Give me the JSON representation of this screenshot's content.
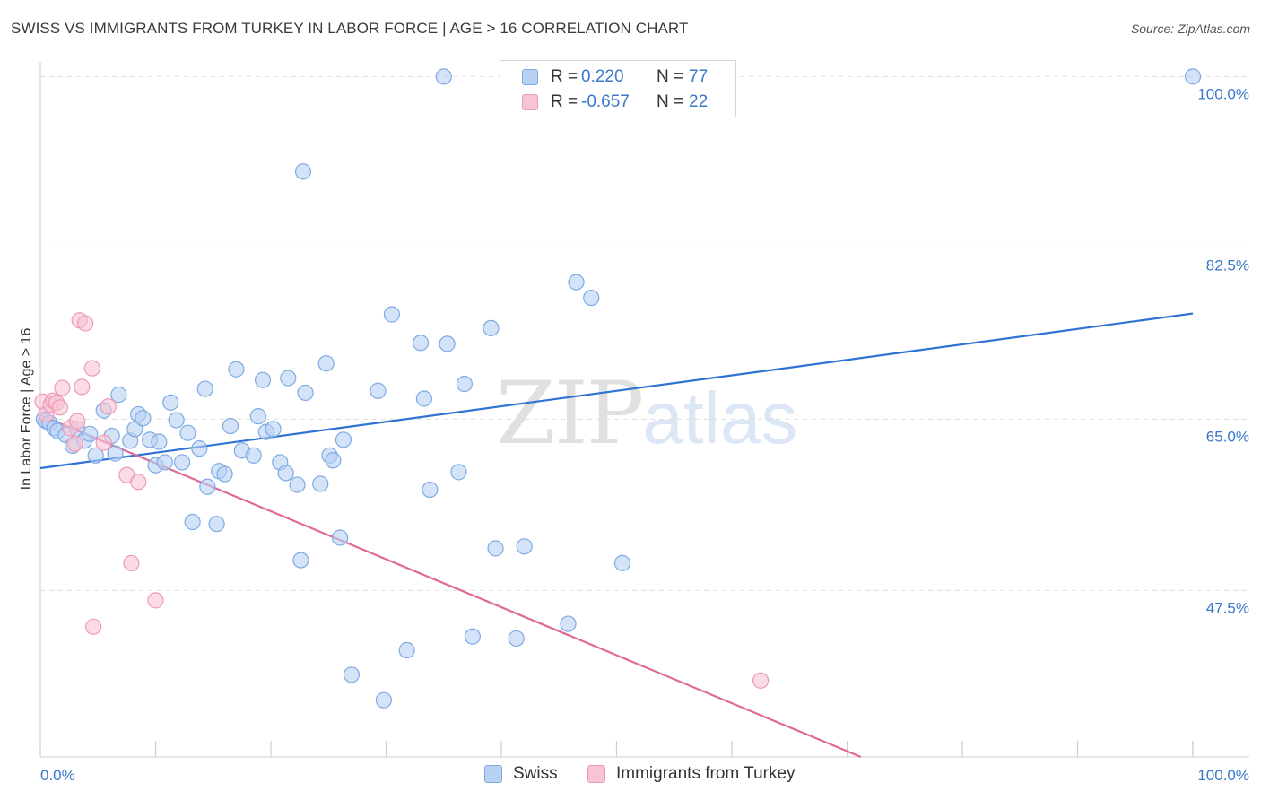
{
  "title": "SWISS VS IMMIGRANTS FROM TURKEY IN LABOR FORCE | AGE > 16 CORRELATION CHART",
  "source": "Source: ZipAtlas.com",
  "watermark": {
    "zip": "ZIP",
    "atlas": "atlas"
  },
  "legend": {
    "rows": [
      {
        "r_label": "R =",
        "r_value": "0.220",
        "n_label": "N =",
        "n_value": "77"
      },
      {
        "r_label": "R =",
        "r_value": "-0.657",
        "n_label": "N =",
        "n_value": "22"
      }
    ]
  },
  "colors": {
    "swiss_fill": "#b8d1f3",
    "swiss_stroke": "#7eaae4",
    "swiss_line": "#2e72d2",
    "turkey_fill": "#f8c4d4",
    "turkey_stroke": "#ee9ab4",
    "turkey_line": "#e06a97",
    "axis_text": "#3a78c9",
    "grid": "#dddddd"
  },
  "chart_data": {
    "type": "scatter",
    "title": "SWISS VS IMMIGRANTS FROM TURKEY IN LABOR FORCE | AGE > 16 CORRELATION CHART",
    "xlabel": "",
    "ylabel": "In Labor Force | Age > 16",
    "xlim": [
      0,
      100
    ],
    "ylim": [
      30.5,
      101.5
    ],
    "x_tick_labels": [
      "0.0%",
      "100.0%"
    ],
    "y_ticks": [
      47.5,
      65.0,
      82.5,
      100.0
    ],
    "y_tick_labels": [
      "47.5%",
      "65.0%",
      "82.5%",
      "100.0%"
    ],
    "grid": true,
    "legend_position": "bottom",
    "series": [
      {
        "name": "Swiss",
        "points": [
          [
            0.3,
            65.0
          ],
          [
            0.5,
            64.8
          ],
          [
            0.8,
            64.6
          ],
          [
            1.2,
            64.1
          ],
          [
            1.5,
            63.8
          ],
          [
            2.2,
            63.4
          ],
          [
            2.8,
            62.3
          ],
          [
            3.2,
            64.0
          ],
          [
            3.8,
            62.8
          ],
          [
            4.3,
            63.5
          ],
          [
            4.8,
            61.3
          ],
          [
            5.5,
            65.9
          ],
          [
            6.2,
            63.3
          ],
          [
            6.5,
            61.5
          ],
          [
            6.8,
            67.5
          ],
          [
            7.8,
            62.8
          ],
          [
            8.2,
            64.0
          ],
          [
            8.5,
            65.5
          ],
          [
            8.9,
            65.1
          ],
          [
            9.5,
            62.9
          ],
          [
            10.0,
            60.3
          ],
          [
            10.3,
            62.7
          ],
          [
            10.8,
            60.6
          ],
          [
            11.3,
            66.7
          ],
          [
            11.8,
            64.9
          ],
          [
            12.3,
            60.6
          ],
          [
            12.8,
            63.6
          ],
          [
            13.2,
            54.5
          ],
          [
            13.8,
            62.0
          ],
          [
            14.3,
            68.1
          ],
          [
            14.5,
            58.1
          ],
          [
            15.3,
            54.3
          ],
          [
            15.5,
            59.7
          ],
          [
            16.0,
            59.4
          ],
          [
            16.5,
            64.3
          ],
          [
            17.0,
            70.1
          ],
          [
            17.5,
            61.8
          ],
          [
            18.5,
            61.3
          ],
          [
            18.9,
            65.3
          ],
          [
            19.3,
            69.0
          ],
          [
            19.6,
            63.7
          ],
          [
            20.2,
            64.0
          ],
          [
            20.8,
            60.6
          ],
          [
            21.3,
            59.5
          ],
          [
            21.5,
            69.2
          ],
          [
            22.3,
            58.3
          ],
          [
            22.8,
            90.3
          ],
          [
            23.0,
            67.7
          ],
          [
            24.3,
            58.4
          ],
          [
            24.8,
            70.7
          ],
          [
            25.1,
            61.3
          ],
          [
            25.4,
            60.8
          ],
          [
            26.0,
            52.9
          ],
          [
            26.3,
            62.9
          ],
          [
            27.0,
            38.9
          ],
          [
            29.3,
            67.9
          ],
          [
            29.8,
            36.3
          ],
          [
            30.5,
            75.7
          ],
          [
            31.8,
            41.4
          ],
          [
            33.0,
            72.8
          ],
          [
            33.3,
            67.1
          ],
          [
            33.8,
            57.8
          ],
          [
            35.0,
            100.0
          ],
          [
            35.3,
            72.7
          ],
          [
            36.3,
            59.6
          ],
          [
            36.8,
            68.6
          ],
          [
            37.5,
            42.8
          ],
          [
            39.1,
            74.3
          ],
          [
            39.5,
            51.8
          ],
          [
            41.3,
            42.6
          ],
          [
            42.0,
            52.0
          ],
          [
            45.8,
            44.1
          ],
          [
            46.5,
            79.0
          ],
          [
            47.8,
            77.4
          ],
          [
            50.5,
            50.3
          ],
          [
            22.6,
            50.6
          ],
          [
            100.0,
            100.0
          ]
        ],
        "trend": {
          "x": [
            0,
            100
          ],
          "y": [
            60.0,
            75.8
          ]
        }
      },
      {
        "name": "Immigrants from Turkey",
        "points": [
          [
            0.2,
            66.8
          ],
          [
            0.5,
            65.5
          ],
          [
            0.9,
            66.5
          ],
          [
            1.1,
            66.9
          ],
          [
            1.4,
            66.7
          ],
          [
            1.7,
            66.2
          ],
          [
            1.9,
            68.2
          ],
          [
            2.6,
            64.1
          ],
          [
            3.0,
            62.5
          ],
          [
            3.2,
            64.8
          ],
          [
            3.6,
            68.3
          ],
          [
            3.4,
            75.1
          ],
          [
            3.9,
            74.8
          ],
          [
            4.5,
            70.2
          ],
          [
            5.5,
            62.6
          ],
          [
            5.9,
            66.3
          ],
          [
            7.5,
            59.3
          ],
          [
            7.9,
            50.3
          ],
          [
            8.5,
            58.6
          ],
          [
            10.0,
            46.5
          ],
          [
            4.6,
            43.8
          ],
          [
            62.5,
            38.3
          ]
        ],
        "trend": {
          "x": [
            0,
            71.2
          ],
          "y": [
            65.4,
            30.5
          ]
        }
      }
    ]
  }
}
